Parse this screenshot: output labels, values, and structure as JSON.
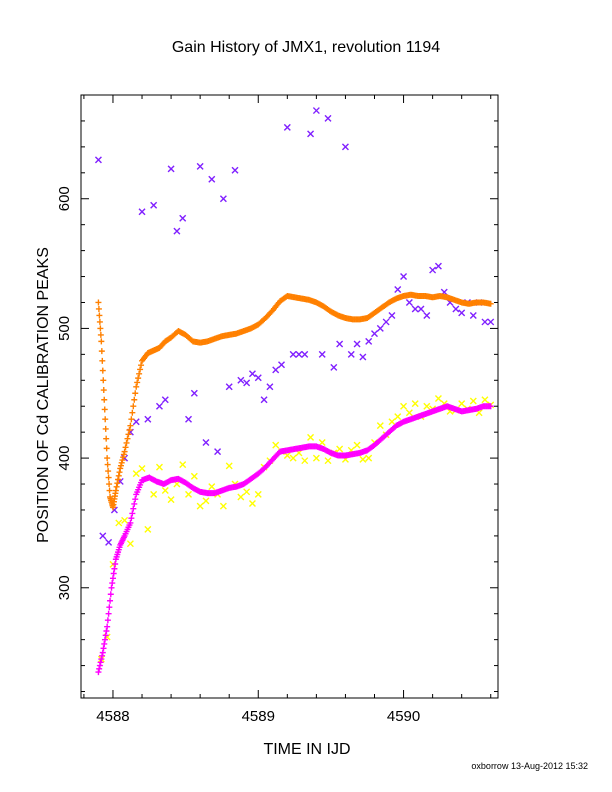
{
  "chart_data": {
    "type": "scatter",
    "title": "Gain History of JMX1, revolution 1194",
    "xlabel": "TIME IN IJD",
    "ylabel": "POSITION OF Cd CALIBRATION PEAKS",
    "xlim": [
      4587.78,
      4590.65
    ],
    "ylim": [
      215,
      680
    ],
    "xticks": [
      4588,
      4589,
      4590
    ],
    "xtick_labels": [
      "4588",
      "4589",
      "4590"
    ],
    "yticks": [
      300,
      400,
      500,
      600
    ],
    "ytick_labels": [
      "300",
      "400",
      "500",
      "600"
    ],
    "grid": false,
    "series": [
      {
        "color": "#ff8000",
        "marker": "plus",
        "x": [
          4587.9,
          4587.92,
          4587.94,
          4587.96,
          4587.98,
          4588.0,
          4588.02,
          4588.05,
          4588.08,
          4588.12,
          4588.16,
          4588.2,
          4588.24,
          4588.28,
          4588.32,
          4588.36,
          4588.4,
          4588.45,
          4588.5,
          4588.55,
          4588.6,
          4588.65,
          4588.7,
          4588.75,
          4588.8,
          4588.85,
          4588.9,
          4588.95,
          4589.0,
          4589.05,
          4589.1,
          4589.15,
          4589.2,
          4589.25,
          4589.3,
          4589.35,
          4589.4,
          4589.45,
          4589.5,
          4589.55,
          4589.6,
          4589.65,
          4589.7,
          4589.75,
          4589.8,
          4589.85,
          4589.9,
          4589.95,
          4590.0,
          4590.05,
          4590.1,
          4590.15,
          4590.2,
          4590.25,
          4590.3,
          4590.35,
          4590.4,
          4590.45,
          4590.5,
          4590.55,
          4590.6
        ],
        "values": [
          520,
          490,
          445,
          400,
          370,
          362,
          375,
          392,
          405,
          425,
          455,
          475,
          481,
          483,
          485,
          490,
          493,
          498,
          495,
          490,
          489,
          490,
          492,
          494,
          495,
          496,
          498,
          500,
          503,
          508,
          514,
          521,
          525,
          524,
          523,
          522,
          520,
          517,
          513,
          510,
          508,
          507,
          507,
          508,
          512,
          516,
          520,
          523,
          525,
          526,
          525,
          525,
          524,
          525,
          524,
          522,
          520,
          519,
          520,
          520,
          519
        ]
      },
      {
        "color": "#ff00ff",
        "marker": "plus",
        "x": [
          4587.9,
          4587.93,
          4587.96,
          4587.99,
          4588.02,
          4588.05,
          4588.08,
          4588.12,
          4588.16,
          4588.2,
          4588.25,
          4588.3,
          4588.35,
          4588.4,
          4588.45,
          4588.5,
          4588.55,
          4588.6,
          4588.65,
          4588.7,
          4588.75,
          4588.8,
          4588.85,
          4588.9,
          4588.95,
          4589.0,
          4589.05,
          4589.1,
          4589.15,
          4589.2,
          4589.25,
          4589.3,
          4589.35,
          4589.4,
          4589.45,
          4589.5,
          4589.55,
          4589.6,
          4589.65,
          4589.7,
          4589.75,
          4589.8,
          4589.85,
          4589.9,
          4589.95,
          4590.0,
          4590.05,
          4590.1,
          4590.15,
          4590.2,
          4590.25,
          4590.3,
          4590.35,
          4590.4,
          4590.45,
          4590.5,
          4590.55,
          4590.6
        ],
        "values": [
          235,
          250,
          270,
          300,
          322,
          333,
          340,
          350,
          372,
          383,
          385,
          382,
          380,
          383,
          384,
          381,
          377,
          374,
          373,
          373,
          375,
          377,
          378,
          380,
          384,
          388,
          393,
          399,
          405,
          406,
          407,
          408,
          409,
          409,
          407,
          404,
          402,
          402,
          403,
          404,
          406,
          410,
          415,
          420,
          425,
          428,
          430,
          432,
          434,
          436,
          438,
          440,
          438,
          436,
          437,
          438,
          440,
          440
        ]
      },
      {
        "color": "#ffff00",
        "marker": "x",
        "x": [
          4587.92,
          4587.96,
          4588.0,
          4588.04,
          4588.08,
          4588.12,
          4588.16,
          4588.2,
          4588.24,
          4588.28,
          4588.32,
          4588.36,
          4588.4,
          4588.44,
          4588.48,
          4588.52,
          4588.56,
          4588.6,
          4588.64,
          4588.68,
          4588.72,
          4588.76,
          4588.8,
          4588.84,
          4588.88,
          4588.92,
          4588.96,
          4589.0,
          4589.04,
          4589.08,
          4589.12,
          4589.16,
          4589.2,
          4589.24,
          4589.28,
          4589.32,
          4589.36,
          4589.4,
          4589.44,
          4589.48,
          4589.52,
          4589.56,
          4589.6,
          4589.64,
          4589.68,
          4589.72,
          4589.76,
          4589.8,
          4589.84,
          4589.88,
          4589.92,
          4589.96,
          4590.0,
          4590.04,
          4590.08,
          4590.12,
          4590.16,
          4590.2,
          4590.24,
          4590.28,
          4590.32,
          4590.36,
          4590.4,
          4590.44,
          4590.48,
          4590.52,
          4590.56,
          4590.6
        ],
        "values": [
          245,
          262,
          318,
          350,
          352,
          334,
          388,
          392,
          345,
          372,
          393,
          375,
          368,
          380,
          395,
          372,
          386,
          363,
          367,
          378,
          372,
          363,
          394,
          380,
          370,
          374,
          365,
          372,
          393,
          398,
          410,
          405,
          402,
          400,
          404,
          398,
          416,
          400,
          412,
          398,
          404,
          407,
          399,
          406,
          410,
          399,
          400,
          412,
          425,
          418,
          428,
          432,
          440,
          435,
          442,
          432,
          440,
          438,
          446,
          442,
          436,
          437,
          442,
          438,
          444,
          435,
          445,
          441
        ]
      },
      {
        "color": "#8020ff",
        "marker": "x",
        "x": [
          4587.9,
          4587.93,
          4587.97,
          4588.01,
          4588.05,
          4588.08,
          4588.12,
          4588.16,
          4588.2,
          4588.24,
          4588.28,
          4588.32,
          4588.36,
          4588.4,
          4588.44,
          4588.48,
          4588.52,
          4588.56,
          4588.6,
          4588.64,
          4588.68,
          4588.72,
          4588.76,
          4588.8,
          4588.84,
          4588.88,
          4588.92,
          4588.96,
          4589.0,
          4589.04,
          4589.08,
          4589.12,
          4589.16,
          4589.2,
          4589.24,
          4589.28,
          4589.32,
          4589.36,
          4589.4,
          4589.44,
          4589.48,
          4589.52,
          4589.56,
          4589.6,
          4589.64,
          4589.68,
          4589.72,
          4589.76,
          4589.8,
          4589.84,
          4589.88,
          4589.92,
          4589.96,
          4590.0,
          4590.04,
          4590.08,
          4590.12,
          4590.16,
          4590.2,
          4590.24,
          4590.28,
          4590.32,
          4590.36,
          4590.4,
          4590.44,
          4590.48,
          4590.52,
          4590.56,
          4590.6
        ],
        "values": [
          630,
          340,
          335,
          360,
          382,
          400,
          420,
          428,
          590,
          430,
          595,
          440,
          445,
          623,
          575,
          585,
          430,
          450,
          625,
          412,
          615,
          405,
          600,
          455,
          622,
          460,
          458,
          465,
          462,
          445,
          455,
          468,
          472,
          655,
          480,
          480,
          480,
          650,
          668,
          480,
          662,
          470,
          488,
          640,
          480,
          488,
          478,
          490,
          496,
          500,
          505,
          510,
          530,
          540,
          520,
          515,
          515,
          510,
          545,
          548,
          528,
          520,
          515,
          512,
          520,
          510,
          520,
          505,
          505
        ]
      }
    ]
  },
  "footer": "oxborrow 13-Aug-2012 15:32",
  "colors": {
    "axis": "#000000",
    "background": "#ffffff"
  }
}
